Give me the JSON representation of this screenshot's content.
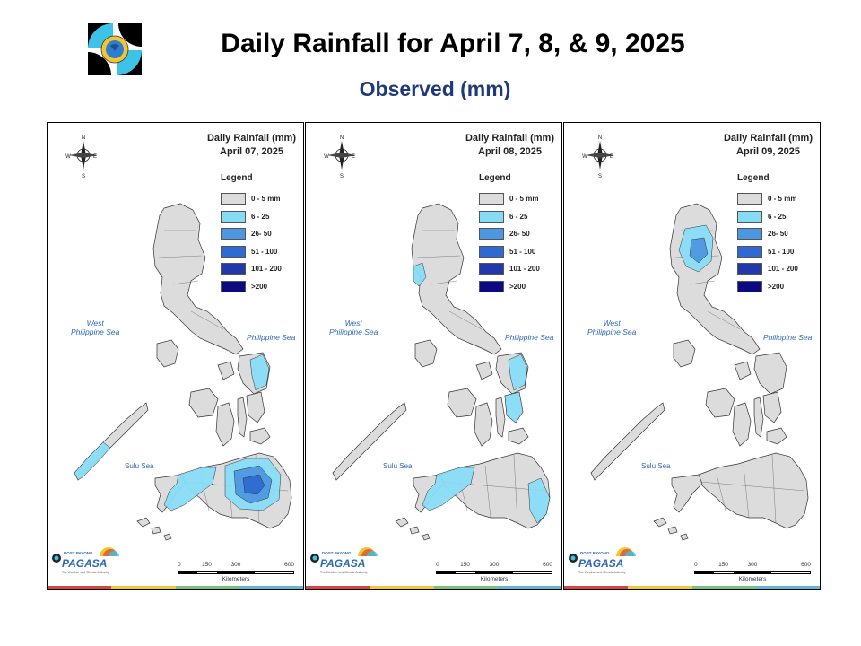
{
  "header": {
    "title": "Daily Rainfall for April 7, 8, & 9, 2025",
    "subtitle": "Observed (mm)"
  },
  "legend": {
    "title": "Legend",
    "items": [
      {
        "label": "0 - 5 mm",
        "color": "#dcdcdc"
      },
      {
        "label": "6 - 25",
        "color": "#87dcf5"
      },
      {
        "label": "26- 50",
        "color": "#4d97e0"
      },
      {
        "label": "51 - 100",
        "color": "#2e6ad1"
      },
      {
        "label": "101 - 200",
        "color": "#2239a8"
      },
      {
        "label": ">200",
        "color": "#0b0a80"
      }
    ]
  },
  "labels": {
    "west_sea": "West\nPhilippine Sea",
    "east_sea": "Philippine Sea",
    "sulu_sea": "Sulu Sea",
    "compass_n": "N",
    "compass_s": "S",
    "compass_e": "E",
    "compass_w": "W",
    "brand_top": "DOST PAYONG",
    "brand": "PAGASA",
    "brand_tag": "The Weather and Climate Authority",
    "scale_ticks": [
      "0",
      "150",
      "300",
      "600"
    ],
    "scale_unit": "Kilometers"
  },
  "strip_colors": [
    "#d3453f",
    "#f0c93b",
    "#7cc07f",
    "#5fb7d8"
  ],
  "panels": [
    {
      "title_line1": "Daily Rainfall (mm)",
      "title_line2": "April 07, 2025",
      "rain_areas": [
        {
          "region": "palawan-south",
          "class": "6 - 25"
        },
        {
          "region": "samar-east",
          "class": "6 - 25"
        },
        {
          "region": "mindanao-west",
          "class": "6 - 25"
        },
        {
          "region": "mindanao-central",
          "class": "6 - 25"
        },
        {
          "region": "mindanao-core",
          "class": "26- 50"
        },
        {
          "region": "mindanao-center",
          "class": "51 - 100"
        }
      ]
    },
    {
      "title_line1": "Daily Rainfall (mm)",
      "title_line2": "April 08, 2025",
      "rain_areas": [
        {
          "region": "luzon-northwest",
          "class": "6 - 25"
        },
        {
          "region": "samar-east",
          "class": "6 - 25"
        },
        {
          "region": "leyte",
          "class": "6 - 25"
        },
        {
          "region": "mindanao-west",
          "class": "6 - 25"
        },
        {
          "region": "mindanao-southeast",
          "class": "6 - 25"
        }
      ]
    },
    {
      "title_line1": "Daily Rainfall (mm)",
      "title_line2": "April 09, 2025",
      "rain_areas": [
        {
          "region": "luzon-cordillera",
          "class": "6 - 25"
        },
        {
          "region": "luzon-cordillera-core",
          "class": "26- 50"
        }
      ]
    }
  ]
}
